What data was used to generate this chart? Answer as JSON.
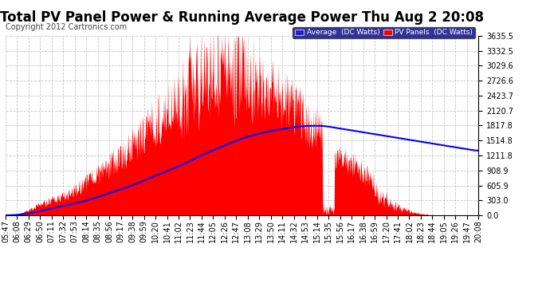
{
  "title": "Total PV Panel Power & Running Average Power Thu Aug 2 20:08",
  "copyright": "Copyright 2012 Cartronics.com",
  "legend_avg_label": "Average  (DC Watts)",
  "legend_pv_label": "PV Panels  (DC Watts)",
  "ytick_labels": [
    "0.0",
    "303.0",
    "605.9",
    "908.9",
    "1211.8",
    "1514.8",
    "1817.8",
    "2120.7",
    "2423.7",
    "2726.6",
    "3029.6",
    "3332.5",
    "3635.5"
  ],
  "ytick_values": [
    0.0,
    303.0,
    605.9,
    908.9,
    1211.8,
    1514.8,
    1817.8,
    2120.7,
    2423.7,
    2726.6,
    3029.6,
    3332.5,
    3635.5
  ],
  "ymax": 3635.5,
  "ymin": 0.0,
  "background_color": "#ffffff",
  "plot_bg_color": "#ffffff",
  "grid_color": "#c0c0c0",
  "pv_color": "#ff0000",
  "avg_color": "#0000ff",
  "title_color": "#000000",
  "title_fontsize": 12,
  "copyright_fontsize": 7,
  "axis_fontsize": 7,
  "legend_bg_color": "#000080",
  "xtick_labels": [
    "05:47",
    "06:08",
    "06:29",
    "06:50",
    "07:11",
    "07:32",
    "07:53",
    "08:14",
    "08:35",
    "08:56",
    "09:17",
    "09:38",
    "09:59",
    "10:20",
    "10:41",
    "11:02",
    "11:23",
    "11:44",
    "12:05",
    "12:26",
    "12:47",
    "13:08",
    "13:29",
    "13:50",
    "14:11",
    "14:32",
    "14:53",
    "15:14",
    "15:35",
    "15:56",
    "16:17",
    "16:38",
    "16:59",
    "17:20",
    "17:41",
    "18:02",
    "18:23",
    "18:44",
    "19:05",
    "19:26",
    "19:47",
    "20:08"
  ]
}
